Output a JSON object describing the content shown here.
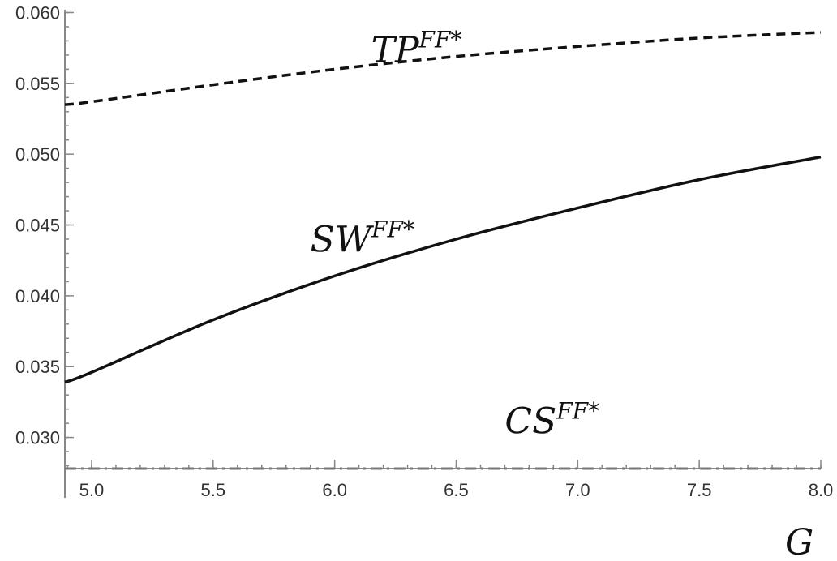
{
  "chart_data": {
    "type": "line",
    "xlabel": "G",
    "ylabel": "",
    "xlim": [
      4.89,
      8.0
    ],
    "ylim": [
      0.0278,
      0.0602
    ],
    "x_ticks": [
      5.0,
      5.5,
      6.0,
      6.5,
      7.0,
      7.5,
      8.0
    ],
    "x_tick_labels": [
      "5.0",
      "5.5",
      "6.0",
      "6.5",
      "7.0",
      "7.5",
      "8.0"
    ],
    "y_ticks": [
      0.03,
      0.035,
      0.04,
      0.045,
      0.05,
      0.055,
      0.06
    ],
    "y_tick_labels": [
      "0.030",
      "0.035",
      "0.040",
      "0.045",
      "0.050",
      "0.055",
      "0.060"
    ],
    "grid": false,
    "series": [
      {
        "id": "tp",
        "style": "dashed",
        "color": "#111111",
        "label_base": "TP",
        "label_sup": "FF*",
        "label_at": [
          6.15,
          0.0565
        ],
        "x": [
          4.89,
          5.0,
          5.5,
          6.0,
          6.5,
          7.0,
          7.5,
          8.0
        ],
        "y": [
          0.0535,
          0.0537,
          0.0549,
          0.056,
          0.0569,
          0.0576,
          0.0582,
          0.0586
        ]
      },
      {
        "id": "sw",
        "style": "solid",
        "color": "#111111",
        "label_base": "SW",
        "label_sup": "FF*",
        "label_at": [
          5.9,
          0.0431
        ],
        "x": [
          4.89,
          5.0,
          5.5,
          6.0,
          6.5,
          7.0,
          7.5,
          8.0
        ],
        "y": [
          0.0339,
          0.0346,
          0.0383,
          0.0414,
          0.044,
          0.0462,
          0.0482,
          0.0498
        ]
      },
      {
        "id": "cs",
        "style": "dash-dot",
        "color": "#777777",
        "label_base": "CS",
        "label_sup": "FF*",
        "label_at": [
          6.7,
          0.0303
        ],
        "x": [
          4.89,
          8.0
        ],
        "y": [
          0.0278,
          0.0278
        ]
      }
    ]
  }
}
